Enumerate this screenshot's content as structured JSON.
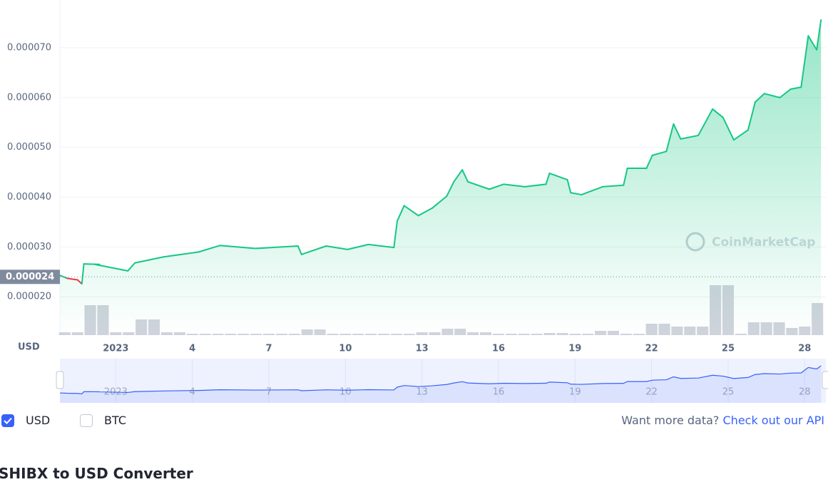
{
  "chart_data": {
    "type": "line",
    "x": [
      -1.19,
      -0.9,
      -0.5,
      -0.33,
      -0.25,
      0.36,
      0.19,
      1.47,
      1.75,
      2.86,
      4.25,
      5.08,
      6.47,
      8.14,
      8.28,
      9.25,
      10.08,
      10.9,
      11.9,
      12.03,
      12.3,
      12.86,
      13.4,
      13.97,
      14.25,
      14.58,
      14.8,
      15.64,
      16.2,
      17.03,
      17.86,
      18.0,
      18.7,
      18.83,
      19.25,
      20.08,
      20.9,
      21.05,
      21.8,
      22.03,
      22.58,
      22.86,
      23.14,
      23.83,
      24.39,
      24.8,
      25.22,
      25.78,
      26.06,
      26.42,
      27.03,
      27.45,
      27.86,
      28.14,
      28.47,
      28.64
    ],
    "series": [
      {
        "name": "USD",
        "color": "#16c784",
        "values": [
          2.43e-05,
          2.37e-05,
          2.34e-05,
          2.26e-05,
          2.66e-05,
          2.65e-05,
          2.65e-05,
          2.52e-05,
          2.68e-05,
          2.8e-05,
          2.9e-05,
          3.03e-05,
          2.97e-05,
          3.02e-05,
          2.85e-05,
          3.02e-05,
          2.95e-05,
          3.05e-05,
          2.99e-05,
          3.52e-05,
          3.83e-05,
          3.63e-05,
          3.78e-05,
          4.02e-05,
          4.31e-05,
          4.55e-05,
          4.31e-05,
          4.16e-05,
          4.26e-05,
          4.21e-05,
          4.26e-05,
          4.48e-05,
          4.35e-05,
          4.09e-05,
          4.05e-05,
          4.21e-05,
          4.24e-05,
          4.58e-05,
          4.58e-05,
          4.84e-05,
          4.92e-05,
          5.47e-05,
          5.17e-05,
          5.24e-05,
          5.77e-05,
          5.6e-05,
          5.15e-05,
          5.35e-05,
          5.91e-05,
          6.08e-05,
          6e-05,
          6.17e-05,
          6.21e-05,
          7.24e-05,
          6.96e-05,
          7.56e-05
        ]
      }
    ],
    "down_color": "#ea3943",
    "reference": {
      "value": 2.4e-05,
      "label": "0.000024"
    },
    "volume": {
      "color": "#cfd3dc",
      "x": [
        -1,
        -0.5,
        0,
        0.5,
        1,
        1.5,
        2,
        2.5,
        3,
        3.5,
        4,
        4.5,
        5,
        5.5,
        6,
        6.5,
        7,
        7.5,
        8,
        8.5,
        9,
        9.5,
        10,
        10.5,
        11,
        11.5,
        12,
        12.5,
        13,
        13.5,
        14,
        14.5,
        15,
        15.5,
        16,
        16.5,
        17,
        17.5,
        18,
        18.5,
        19,
        19.5,
        20,
        20.5,
        21,
        21.5,
        22,
        22.5,
        23,
        23.5,
        24,
        24.5,
        25,
        25.5,
        26,
        26.5,
        27,
        27.5,
        28,
        28.5
      ],
      "values": [
        4,
        4,
        42,
        42,
        4,
        4,
        22,
        22,
        4,
        4,
        2,
        2,
        2,
        2,
        2,
        2,
        2,
        2,
        2,
        8,
        8,
        2,
        2,
        2,
        2,
        2,
        2,
        2,
        4,
        4,
        9,
        9,
        4,
        4,
        2,
        2,
        2,
        2,
        3,
        3,
        2,
        2,
        6,
        6,
        2,
        2,
        16,
        16,
        12,
        12,
        12,
        70,
        70,
        2,
        18,
        18,
        18,
        10,
        12,
        45
      ]
    },
    "xlim": [
      -1.19,
      28.83
    ],
    "xticks": [
      {
        "value": 1,
        "label": "2023"
      },
      4,
      7,
      10,
      13,
      16,
      19,
      22,
      25,
      28
    ],
    "ylim": [
      1.23e-05,
      7.96e-05
    ],
    "yticks": [
      {
        "value": 2e-05,
        "label": "0.000020"
      },
      {
        "value": 3e-05,
        "label": "0.000030"
      },
      {
        "value": 4e-05,
        "label": "0.000040"
      },
      {
        "value": 5e-05,
        "label": "0.000050"
      },
      {
        "value": 6e-05,
        "label": "0.000060"
      },
      {
        "value": 7e-05,
        "label": "0.000070"
      }
    ],
    "grid": true,
    "axis_unit": "USD",
    "watermark": "CoinMarketCap",
    "navigator_color": "#3861fb"
  },
  "controls": {
    "currencies": [
      {
        "label": "USD",
        "checked": true
      },
      {
        "label": "BTC",
        "checked": false
      }
    ],
    "api_prompt": "Want more data?",
    "api_link": "Check out our API"
  },
  "next_section": {
    "title": "SHIBX to USD Converter"
  }
}
